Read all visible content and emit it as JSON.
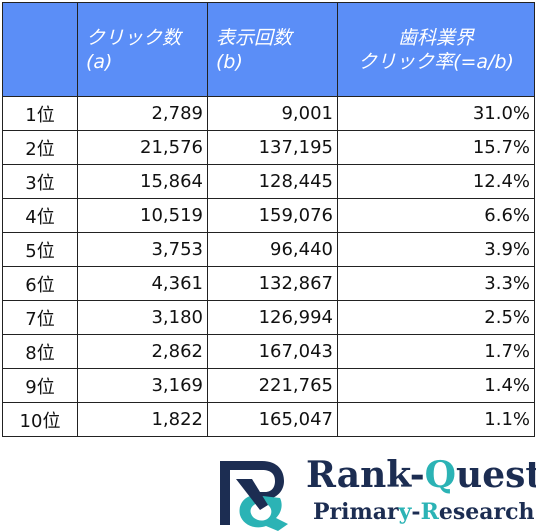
{
  "table": {
    "headers": {
      "clicks": {
        "line1": "クリック数",
        "line2": "(a)"
      },
      "impressions": {
        "line1": "表示回数",
        "line2": "(b)"
      },
      "ctr": {
        "line1": "歯科業界",
        "line2": "クリック率(=a/b)"
      }
    },
    "rows": [
      {
        "rank": "1位",
        "clicks": "2,789",
        "impressions": "9,001",
        "ctr": "31.0%"
      },
      {
        "rank": "2位",
        "clicks": "21,576",
        "impressions": "137,195",
        "ctr": "15.7%"
      },
      {
        "rank": "3位",
        "clicks": "15,864",
        "impressions": "128,445",
        "ctr": "12.4%"
      },
      {
        "rank": "4位",
        "clicks": "10,519",
        "impressions": "159,076",
        "ctr": "6.6%"
      },
      {
        "rank": "5位",
        "clicks": "3,753",
        "impressions": "96,440",
        "ctr": "3.9%"
      },
      {
        "rank": "6位",
        "clicks": "4,361",
        "impressions": "132,867",
        "ctr": "3.3%"
      },
      {
        "rank": "7位",
        "clicks": "3,180",
        "impressions": "126,994",
        "ctr": "2.5%"
      },
      {
        "rank": "8位",
        "clicks": "2,862",
        "impressions": "167,043",
        "ctr": "1.7%"
      },
      {
        "rank": "9位",
        "clicks": "3,169",
        "impressions": "221,765",
        "ctr": "1.4%"
      },
      {
        "rank": "10位",
        "clicks": "1,822",
        "impressions": "165,047",
        "ctr": "1.1%"
      }
    ]
  },
  "logo": {
    "title_a": "Rank-",
    "title_b": "Q",
    "title_c": "uest",
    "sub_a": "Primar",
    "sub_b": "y",
    "sub_c": "-",
    "sub_d": "R",
    "sub_e": "esearch",
    "icon": "rq-monogram-icon"
  },
  "colors": {
    "header_bg": "#5b8ef7",
    "brand_navy": "#1c2d52",
    "brand_teal": "#2bb3b5"
  }
}
